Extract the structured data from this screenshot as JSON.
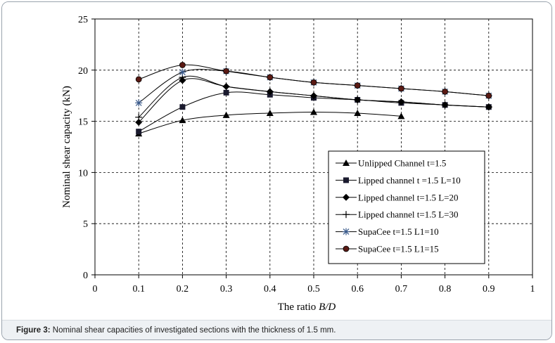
{
  "caption": {
    "label": "Figure 3:",
    "text": " Nominal shear capacities of investigated sections with the thickness of 1.5 mm."
  },
  "chart_data": {
    "type": "line",
    "xlabel": "The ratio ",
    "xlabel_italic": "B/D",
    "ylabel": "Nominal shear capacity (kN)",
    "xlim": [
      0,
      1
    ],
    "ylim": [
      0,
      25
    ],
    "xticks": [
      "0",
      "0.1",
      "0.2",
      "0.3",
      "0.4",
      "0.5",
      "0.6",
      "0.7",
      "0.8",
      "0.9",
      "1"
    ],
    "yticks": [
      "0",
      "5",
      "10",
      "15",
      "20",
      "25"
    ],
    "grid": "dashed",
    "legend_position": "bottom-right",
    "series": [
      {
        "name": "Unlipped Channel t=1.5",
        "marker": "triangle",
        "x": [
          0.1,
          0.2,
          0.3,
          0.4,
          0.5,
          0.6,
          0.7
        ],
        "y": [
          13.8,
          15.1,
          15.6,
          15.8,
          15.9,
          15.8,
          15.5
        ]
      },
      {
        "name": "Lipped channel t =1.5 L=10",
        "marker": "square",
        "x": [
          0.1,
          0.2,
          0.3,
          0.4,
          0.5,
          0.6,
          0.7,
          0.8,
          0.9
        ],
        "y": [
          14.0,
          16.4,
          17.8,
          17.6,
          17.3,
          17.1,
          16.8,
          16.6,
          16.4
        ]
      },
      {
        "name": "Lipped channel t=1.5 L=20",
        "marker": "diamond",
        "x": [
          0.1,
          0.2,
          0.3,
          0.4,
          0.5,
          0.6,
          0.7,
          0.8,
          0.9
        ],
        "y": [
          14.9,
          19.0,
          18.4,
          17.9,
          17.5,
          17.1,
          16.9,
          16.6,
          16.4
        ]
      },
      {
        "name": "Lipped channel t=1.5 L=30",
        "marker": "plus",
        "x": [
          0.1,
          0.2,
          0.3,
          0.4,
          0.5,
          0.6,
          0.7,
          0.8,
          0.9
        ],
        "y": [
          15.4,
          19.3,
          18.4,
          17.9,
          17.5,
          17.1,
          16.9,
          16.6,
          16.4
        ]
      },
      {
        "name": "SupaCee t=1.5 L1=10",
        "marker": "asterisk",
        "x": [
          0.1,
          0.2,
          0.3,
          0.4,
          0.5,
          0.6,
          0.7,
          0.8,
          0.9
        ],
        "y": [
          16.8,
          19.8,
          19.9,
          19.3,
          18.8,
          18.5,
          18.2,
          17.9,
          17.5
        ]
      },
      {
        "name": "SupaCee t=1.5 L1=15",
        "marker": "circle",
        "x": [
          0.1,
          0.2,
          0.3,
          0.4,
          0.5,
          0.6,
          0.7,
          0.8,
          0.9
        ],
        "y": [
          19.1,
          20.5,
          19.9,
          19.3,
          18.8,
          18.5,
          18.2,
          17.9,
          17.5
        ]
      }
    ],
    "colors": {
      "line": "#000000",
      "supacee_10_marker": "#3b5b8c",
      "supacee_15_fill": "#5a1a14",
      "grid": "#000000"
    }
  }
}
